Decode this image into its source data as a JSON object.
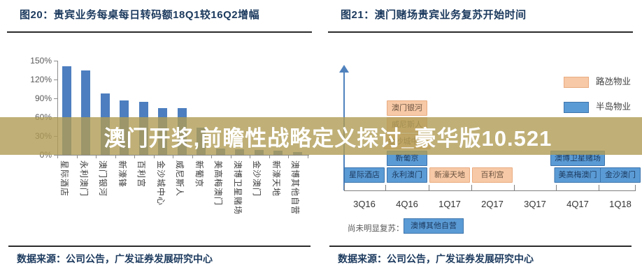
{
  "watermark": {
    "text": "澳门开奖,前瞻性战略定义探讨_豪华版10.521",
    "band_color": "#b09c55",
    "band_rgba": "rgba(176,156,85,0.8)",
    "text_color": "#ffffff"
  },
  "figures": [
    {
      "title": "图20：贵宾业务每桌每日转码额18Q1较16Q2增幅",
      "source": "数据来源：公司公告，广发证券发展研究中心"
    },
    {
      "title": "图21：澳门赌场贵宾业务复苏开始时间",
      "source": "数据来源：公司公告，广发证券发展研究中心"
    }
  ],
  "chart_data": [
    {
      "type": "bar",
      "title": "贵宾业务每桌每日转码额18Q1较16Q2增幅",
      "categories": [
        "星际酒店",
        "永利澳门",
        "澳门银河",
        "新濠锋",
        "百利宫",
        "金沙城中心",
        "威尼斯人",
        "新葡京",
        "美高梅澳门",
        "澳博卫星赌场",
        "金沙澳门",
        "新濠天地",
        "澳博其他自营"
      ],
      "values": [
        141,
        134,
        98,
        87,
        85,
        74,
        74,
        43,
        10,
        9,
        8,
        7,
        5
      ],
      "unit": "%",
      "xlabel": "",
      "ylabel": "",
      "ylim": [
        0,
        150
      ],
      "yticks": [
        "150%",
        "120%",
        "90%",
        "60%",
        "30%",
        "0%"
      ],
      "grid": false,
      "bar_color": "#4d7ebf",
      "axis_color": "#8c8c8c",
      "legend_position": "none"
    },
    {
      "type": "timeline",
      "title": "澳门赌场贵宾业务复苏开始时间",
      "x": [
        "3Q16",
        "4Q16",
        "1Q17",
        "2Q17",
        "3Q17",
        "4Q17",
        "1Q18"
      ],
      "legend_position": "top-right",
      "legend": [
        {
          "label": "路氹物业",
          "fill": "#f7c9a6",
          "border": "#e9ab80",
          "text_color": "#6b5340"
        },
        {
          "label": "半岛物业",
          "fill": "#5b9bd5",
          "border": "#3c74ac",
          "text_color": "#1c3a5e"
        }
      ],
      "boxes": [
        {
          "label": "星际酒店",
          "quarter": "3Q16",
          "row": 0,
          "group": "半岛物业"
        },
        {
          "label": "永利澳门",
          "quarter": "4Q16",
          "row": 0,
          "group": "半岛物业"
        },
        {
          "label": "新葡京",
          "quarter": "4Q16",
          "row": 1,
          "group": "半岛物业"
        },
        {
          "label": "金沙城中心",
          "quarter": "4Q16",
          "row": 2,
          "group": "路氹物业"
        },
        {
          "label": "威尼斯人",
          "quarter": "4Q16",
          "row": 3,
          "group": "路氹物业"
        },
        {
          "label": "澳门银河",
          "quarter": "4Q16",
          "row": 4,
          "group": "路氹物业"
        },
        {
          "label": "新濠天地",
          "quarter": "1Q17",
          "row": 0,
          "group": "路氹物业"
        },
        {
          "label": "百利宫",
          "quarter": "2Q17",
          "row": 0,
          "group": "路氹物业"
        },
        {
          "label": "美高梅澳门",
          "quarter": "4Q17",
          "row": 0,
          "group": "半岛物业"
        },
        {
          "label": "澳博卫星赌场",
          "quarter": "4Q17",
          "row": 1,
          "group": "半岛物业"
        },
        {
          "label": "金沙澳门",
          "quarter": "1Q18",
          "row": 0,
          "group": "半岛物业"
        }
      ],
      "note": {
        "label": "尚未明显复苏：",
        "box": "澳博其他自营",
        "box_group": "半岛物业"
      },
      "axis_arrow_color": "#4f81bd"
    }
  ],
  "colors": {
    "title_navy": "#1c3a5e",
    "bar_blue": "#4d7ebf"
  }
}
